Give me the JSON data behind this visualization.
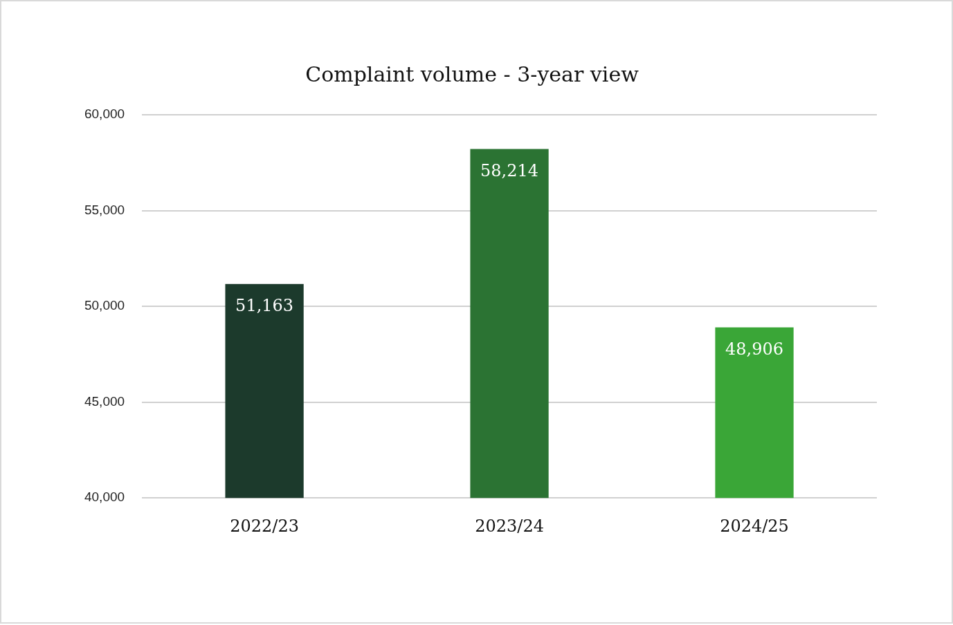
{
  "chart_data": {
    "type": "bar",
    "title": "Complaint volume - 3-year view",
    "categories": [
      "2022/23",
      "2023/24",
      "2024/25"
    ],
    "values": [
      51163,
      58214,
      48906
    ],
    "colors": [
      "#1c3a2c",
      "#2b7333",
      "#3aa637"
    ],
    "ylim": [
      40000,
      60000
    ],
    "yticks": [
      {
        "value": 40000,
        "label": "40,000"
      },
      {
        "value": 45000,
        "label": "45,000"
      },
      {
        "value": 50000,
        "label": "50,000"
      },
      {
        "value": 55000,
        "label": "55,000"
      },
      {
        "value": 60000,
        "label": "60,000"
      }
    ],
    "value_labels": [
      "51,163",
      "58,214",
      "48,906"
    ],
    "grid": "y",
    "legend": false
  }
}
